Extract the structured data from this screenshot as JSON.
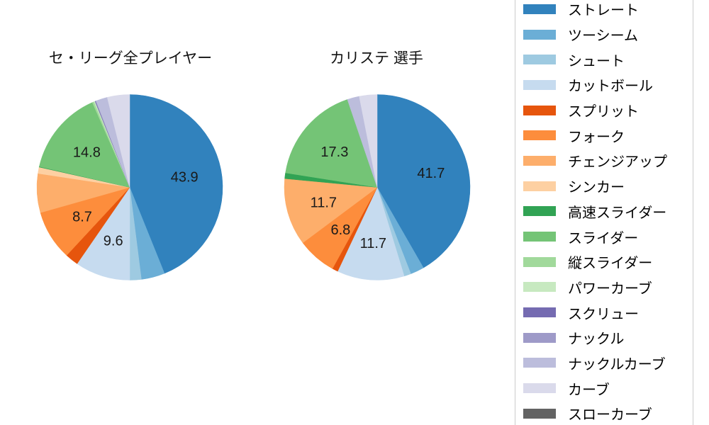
{
  "figure": {
    "background": "#ffffff",
    "pct_label_color": "#1a1a1a",
    "title_color": "#111111",
    "legend_border_color": "#cccccc"
  },
  "chart_data": {
    "type": "pie",
    "direction": "clockwise",
    "start_angle": "12-oclock",
    "pct_label_distance": 0.6,
    "legend_position": "right",
    "categories": [
      "ストレート",
      "ツーシーム",
      "シュート",
      "カットボール",
      "スプリット",
      "フォーク",
      "チェンジアップ",
      "シンカー",
      "高速スライダー",
      "スライダー",
      "縦スライダー",
      "パワーカーブ",
      "スクリュー",
      "ナックル",
      "ナックルカーブ",
      "カーブ",
      "スローカーブ"
    ],
    "colors": [
      "#3182bd",
      "#6baed6",
      "#9ecae1",
      "#c6dbef",
      "#e6550d",
      "#fd8d3c",
      "#fdae6b",
      "#fdd0a2",
      "#31a354",
      "#74c476",
      "#a1d99b",
      "#c7e9c0",
      "#756bb1",
      "#9e9ac8",
      "#bcbddc",
      "#dadaeb",
      "#636363"
    ],
    "pies": [
      {
        "title": "セ・リーグ全プレイヤー",
        "values": [
          43.9,
          4.1,
          2.0,
          9.6,
          2.3,
          8.7,
          6.8,
          1.1,
          0.1,
          14.8,
          0.3,
          0.2,
          0.1,
          0.1,
          2.0,
          3.9,
          0.0
        ],
        "pct_labels": [
          "43.9",
          "",
          "",
          "9.6",
          "",
          "8.7",
          "",
          "",
          "",
          "14.8",
          "",
          "",
          "",
          "",
          "",
          "",
          ""
        ]
      },
      {
        "title": "カリステ 選手",
        "values": [
          41.7,
          2.4,
          1.2,
          11.7,
          1.0,
          6.8,
          11.7,
          0.0,
          1.0,
          17.3,
          0.0,
          0.0,
          0.0,
          0.0,
          2.1,
          3.1,
          0.0
        ],
        "pct_labels": [
          "41.7",
          "",
          "",
          "11.7",
          "",
          "6.8",
          "11.7",
          "",
          "",
          "17.3",
          "",
          "",
          "",
          "",
          "",
          "",
          ""
        ]
      }
    ]
  }
}
